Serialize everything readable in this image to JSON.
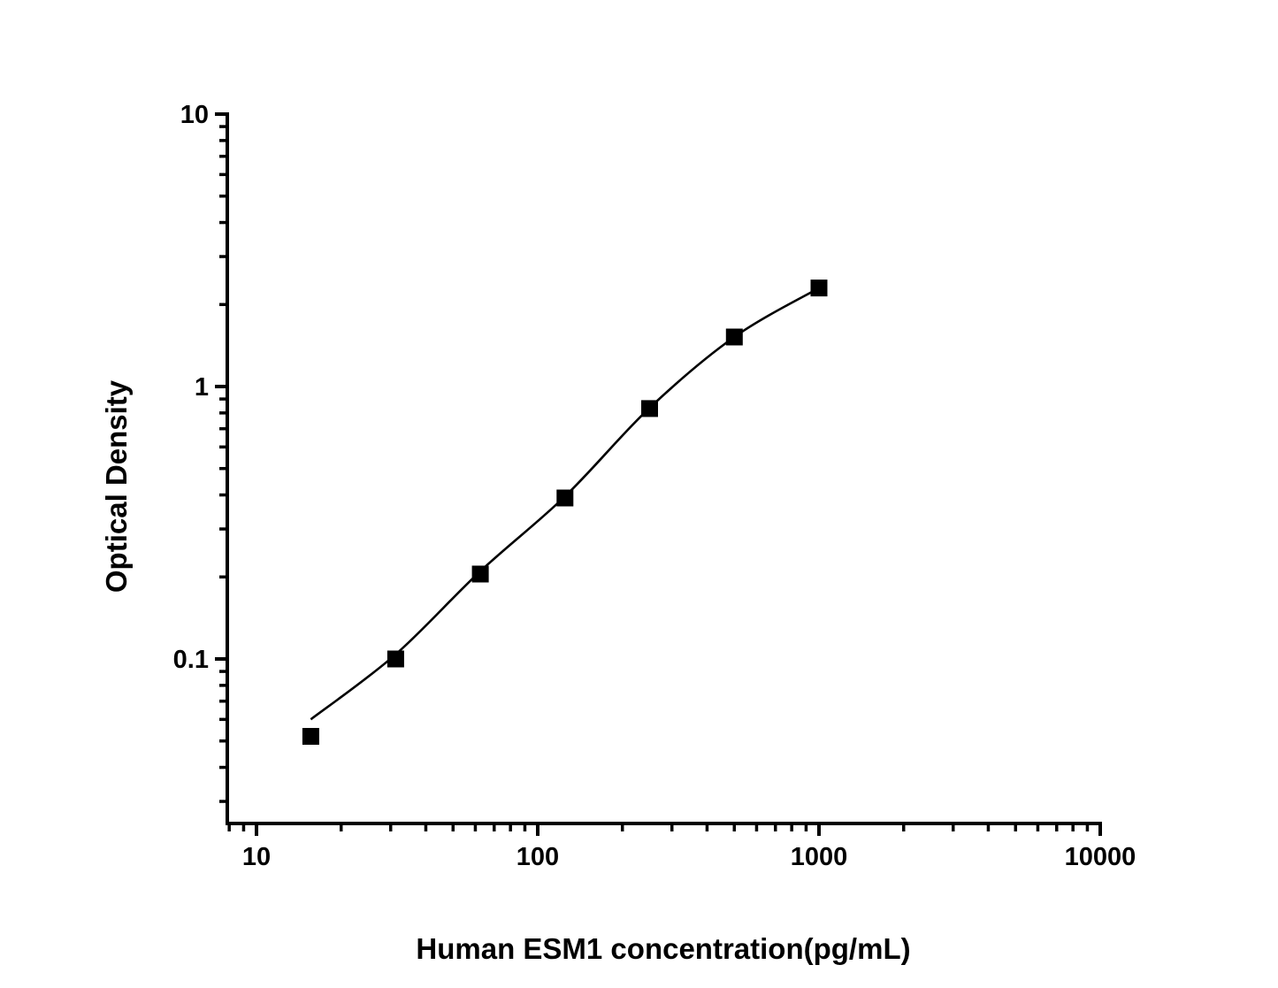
{
  "figure": {
    "background": "#ffffff",
    "ink_color": "#000000"
  },
  "chart_data": {
    "type": "scatter",
    "title": "",
    "xlabel": "Human ESM1 concentration(pg/mL)",
    "ylabel": "Optical Density",
    "x_scale": "log",
    "y_scale": "log",
    "xlim": [
      7.9,
      10000
    ],
    "ylim": [
      0.025,
      10
    ],
    "grid": false,
    "legend": "none",
    "x_ticks": {
      "major_values": [
        10,
        100,
        1000,
        10000
      ],
      "labels": [
        "10",
        "100",
        "1000",
        "10000"
      ]
    },
    "y_ticks": {
      "major_values": [
        10,
        1,
        0.1
      ],
      "labels": [
        "10",
        "1",
        "0.1"
      ]
    },
    "series": [
      {
        "name": "standard-curve-points",
        "marker": "square",
        "marker_color": "#000000",
        "x": [
          15.6,
          31.25,
          62.5,
          125,
          250,
          500,
          1000
        ],
        "y": [
          0.052,
          0.1,
          0.205,
          0.39,
          0.83,
          1.52,
          2.3
        ]
      }
    ],
    "fit_curve": {
      "name": "fitted-curve",
      "color": "#000000",
      "x": [
        15.6,
        31.25,
        62.5,
        125,
        250,
        500,
        1000
      ],
      "y": [
        0.06,
        0.104,
        0.21,
        0.395,
        0.835,
        1.52,
        2.3
      ]
    }
  }
}
